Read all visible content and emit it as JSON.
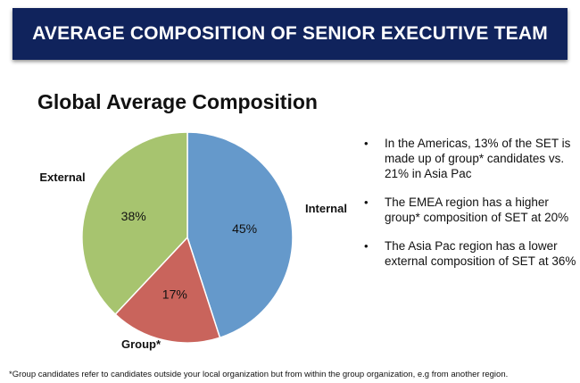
{
  "header": {
    "title": "AVERAGE COMPOSITION OF SENIOR EXECUTIVE TEAM"
  },
  "chart_data": {
    "type": "pie",
    "title": "Global Average Composition",
    "slices": [
      {
        "label": "Internal",
        "value": 45,
        "value_label": "45%",
        "color": "#6599cb"
      },
      {
        "label": "Group*",
        "value": 17,
        "value_label": "17%",
        "color": "#c9645c"
      },
      {
        "label": "External",
        "value": 38,
        "value_label": "38%",
        "color": "#a7c46f"
      }
    ]
  },
  "bullets": [
    {
      "symbol": "•",
      "text": "In the Americas, 13% of the SET is made up of group* candidates vs. 21% in Asia Pac"
    },
    {
      "symbol": "•",
      "text": "The EMEA region has a higher group* composition of SET at 20%"
    },
    {
      "symbol": "•",
      "text": "The Asia Pac region has a lower external composition of SET at 36%"
    }
  ],
  "footnote": "*Group candidates refer to candidates outside your local organization but from within the group organization, e.g from another region."
}
